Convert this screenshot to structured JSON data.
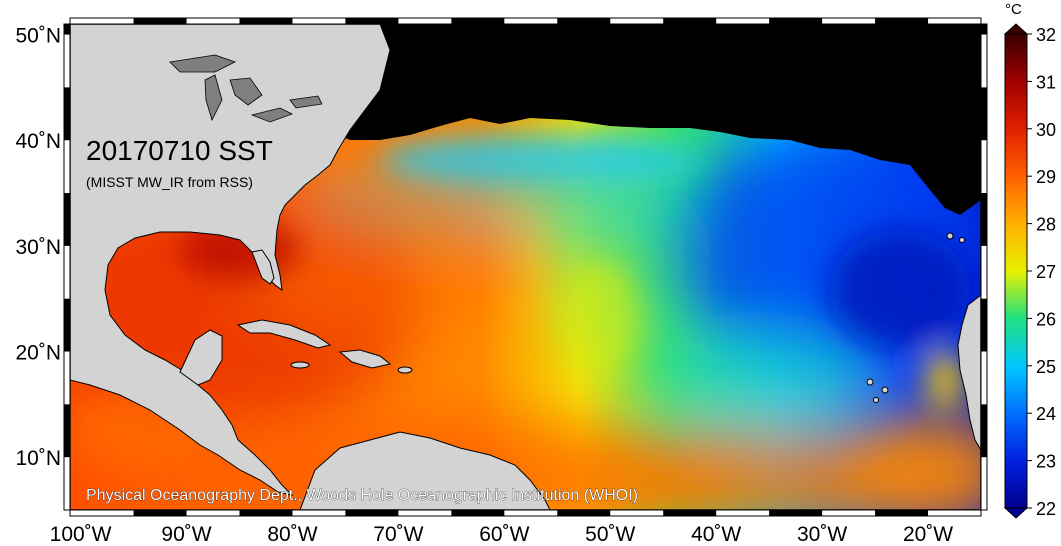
{
  "map": {
    "title": "20170710 SST",
    "subtitle": "(MISST MW_IR from RSS)",
    "credit": "Physical Oceanography Dept., Woods Hole Oceanographic Institution (WHOI)",
    "extent": {
      "lon_min": -101,
      "lon_max": -15,
      "lat_min": 5,
      "lat_max": 51
    },
    "lat_ticks": [
      {
        "value": 10,
        "label": "10˚N"
      },
      {
        "value": 20,
        "label": "20˚N"
      },
      {
        "value": 30,
        "label": "30˚N"
      },
      {
        "value": 40,
        "label": "40˚N"
      },
      {
        "value": 50,
        "label": "50˚N"
      }
    ],
    "lon_ticks": [
      {
        "value": -100,
        "label": "100˚W"
      },
      {
        "value": -90,
        "label": "90˚W"
      },
      {
        "value": -80,
        "label": "80˚W"
      },
      {
        "value": -70,
        "label": "70˚W"
      },
      {
        "value": -60,
        "label": "60˚W"
      },
      {
        "value": -50,
        "label": "50˚W"
      },
      {
        "value": -40,
        "label": "40˚W"
      },
      {
        "value": -30,
        "label": "30˚W"
      },
      {
        "value": -20,
        "label": "20˚W"
      }
    ],
    "colors": {
      "land": "#d3d3d3",
      "no_data": "#000000",
      "lakes": "#7f7f7f",
      "frame": "#000000"
    }
  },
  "colorbar": {
    "unit": "°C",
    "min": 22,
    "max": 32,
    "ticks": [
      {
        "value": 22,
        "label": "22"
      },
      {
        "value": 23,
        "label": "23"
      },
      {
        "value": 24,
        "label": "24"
      },
      {
        "value": 25,
        "label": "25"
      },
      {
        "value": 26,
        "label": "26"
      },
      {
        "value": 27,
        "label": "27"
      },
      {
        "value": 28,
        "label": "28"
      },
      {
        "value": 29,
        "label": "29"
      },
      {
        "value": 30,
        "label": "30"
      },
      {
        "value": 31,
        "label": "31"
      },
      {
        "value": 32,
        "label": "32"
      }
    ],
    "stops": [
      {
        "value": 22,
        "color": "#00008f"
      },
      {
        "value": 23,
        "color": "#0020e0"
      },
      {
        "value": 24,
        "color": "#0070ff"
      },
      {
        "value": 25,
        "color": "#00c8ff"
      },
      {
        "value": 26,
        "color": "#20e080"
      },
      {
        "value": 27,
        "color": "#e8f000"
      },
      {
        "value": 28,
        "color": "#ffb000"
      },
      {
        "value": 29,
        "color": "#ff6000"
      },
      {
        "value": 30,
        "color": "#e02000"
      },
      {
        "value": 31,
        "color": "#a00000"
      },
      {
        "value": 32,
        "color": "#3a0000"
      }
    ]
  }
}
